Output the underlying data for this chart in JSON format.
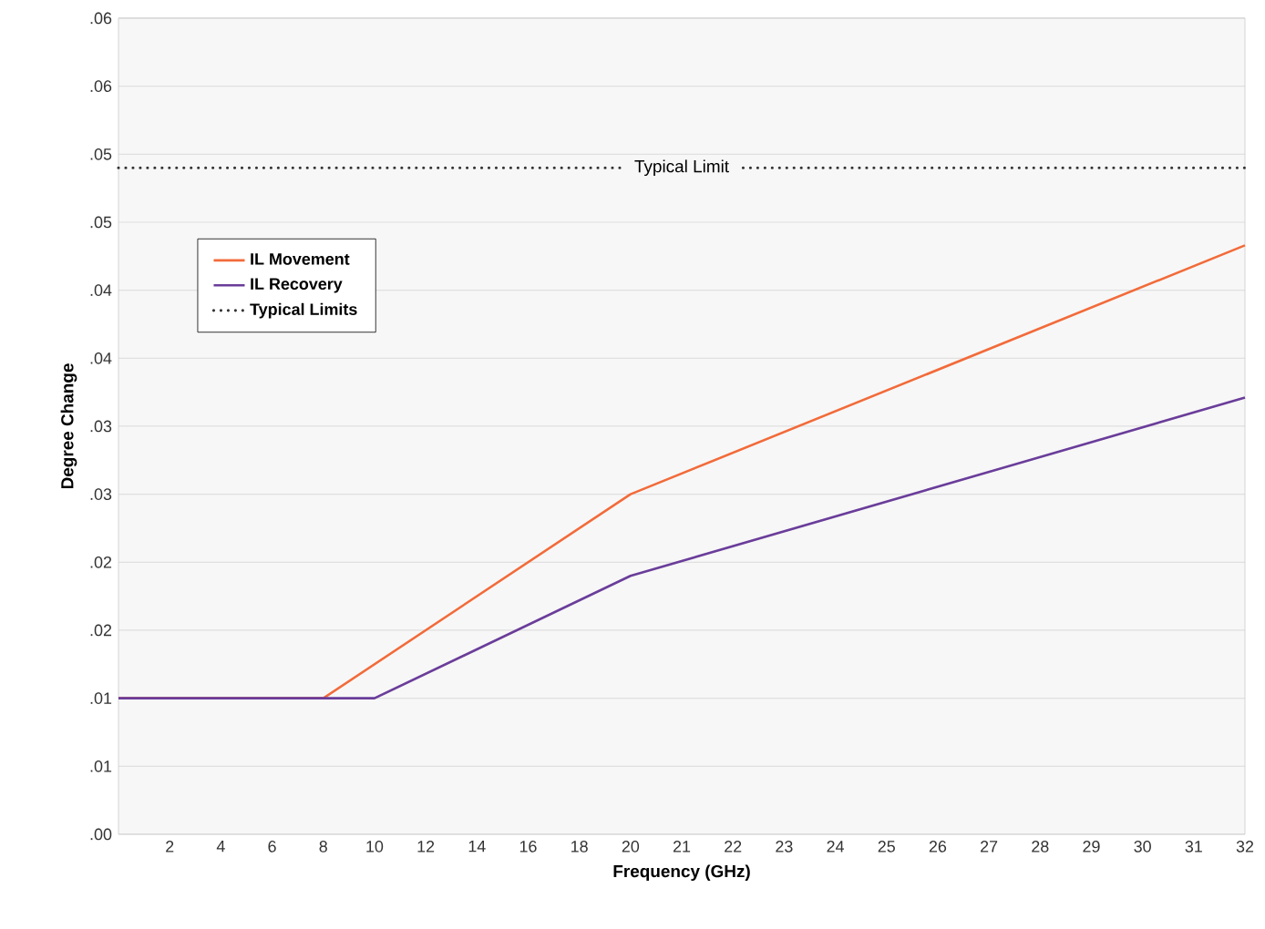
{
  "chart_data": {
    "type": "line",
    "xlabel": "Frequency (GHz)",
    "ylabel": "Degree Change",
    "categories": [
      null,
      "2",
      "4",
      "6",
      "8",
      "10",
      "12",
      "14",
      "16",
      "18",
      "20",
      "21",
      "22",
      "23",
      "24",
      "25",
      "26",
      "27",
      "28",
      "29",
      "30",
      "31",
      "32"
    ],
    "series": [
      {
        "name": "IL Movement",
        "color": "#f26b3a",
        "line_style": "solid",
        "values": [
          0.01,
          null,
          null,
          null,
          0.01,
          null,
          null,
          null,
          null,
          null,
          0.025,
          null,
          null,
          null,
          null,
          null,
          null,
          null,
          null,
          null,
          null,
          null,
          0.0433
        ]
      },
      {
        "name": "IL Recovery",
        "color": "#6a3d9a",
        "line_style": "solid",
        "values": [
          0.01,
          null,
          null,
          null,
          null,
          0.01,
          null,
          null,
          null,
          null,
          0.019,
          null,
          null,
          null,
          null,
          null,
          null,
          null,
          null,
          null,
          null,
          null,
          0.0321
        ]
      },
      {
        "name": "Typical Limits",
        "color": "#333333",
        "line_style": "dotted",
        "values": [
          0.049,
          null,
          null,
          null,
          null,
          null,
          null,
          null,
          null,
          null,
          null,
          null,
          null,
          null,
          null,
          null,
          null,
          null,
          null,
          null,
          null,
          null,
          0.049
        ]
      }
    ],
    "annotations": [
      {
        "text": "Typical Limit",
        "x": "21",
        "y": 0.049
      }
    ],
    "ylim": [
      0,
      0.06
    ],
    "yticks": [
      {
        "value": 0,
        "label": ".00"
      },
      {
        "value": 0.005,
        "label": ".01"
      },
      {
        "value": 0.01,
        "label": ".01"
      },
      {
        "value": 0.015,
        "label": ".02"
      },
      {
        "value": 0.02,
        "label": ".02"
      },
      {
        "value": 0.025,
        "label": ".03"
      },
      {
        "value": 0.03,
        "label": ".03"
      },
      {
        "value": 0.035,
        "label": ".04"
      },
      {
        "value": 0.04,
        "label": ".04"
      },
      {
        "value": 0.045,
        "label": ".05"
      },
      {
        "value": 0.05,
        "label": ".05"
      },
      {
        "value": 0.055,
        "label": ".06"
      },
      {
        "value": 0.06,
        "label": ".06"
      }
    ],
    "grid": "y",
    "legend": "top left",
    "marker": "none"
  }
}
